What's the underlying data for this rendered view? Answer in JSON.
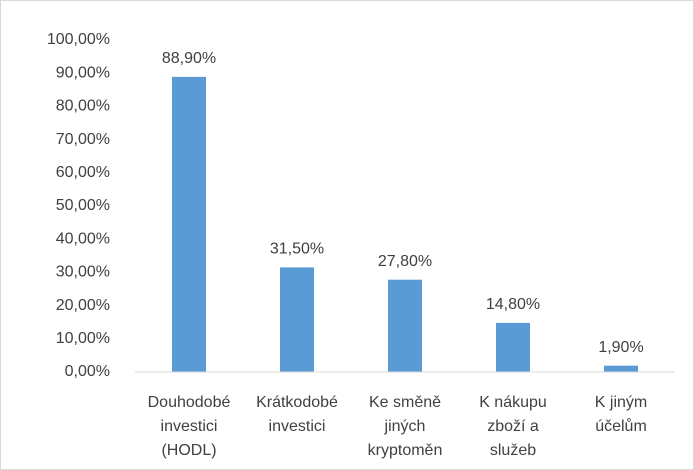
{
  "chart_data": {
    "type": "bar",
    "categories": [
      [
        "Douhodobé",
        "investici",
        "(HODL)"
      ],
      [
        "Krátkodobé",
        "investici"
      ],
      [
        "Ke směně",
        "jiných",
        "kryptoměn"
      ],
      [
        "K nákupu",
        "zboží a",
        "služeb"
      ],
      [
        "K jiným",
        "účelům"
      ]
    ],
    "values": [
      88.9,
      31.5,
      27.8,
      14.8,
      1.9
    ],
    "value_labels": [
      "88,90%",
      "31,50%",
      "27,80%",
      "14,80%",
      "1,90%"
    ],
    "color": "#5b9bd5",
    "ylim": [
      0,
      100
    ],
    "yticks": [
      {
        "value": 0,
        "label": "0,00%"
      },
      {
        "value": 10,
        "label": "10,00%"
      },
      {
        "value": 20,
        "label": "20,00%"
      },
      {
        "value": 30,
        "label": "30,00%"
      },
      {
        "value": 40,
        "label": "40,00%"
      },
      {
        "value": 50,
        "label": "50,00%"
      },
      {
        "value": 60,
        "label": "60,00%"
      },
      {
        "value": 70,
        "label": "70,00%"
      },
      {
        "value": 80,
        "label": "80,00%"
      },
      {
        "value": 90,
        "label": "90,00%"
      },
      {
        "value": 100,
        "label": "100,00%"
      }
    ],
    "grid": false
  }
}
